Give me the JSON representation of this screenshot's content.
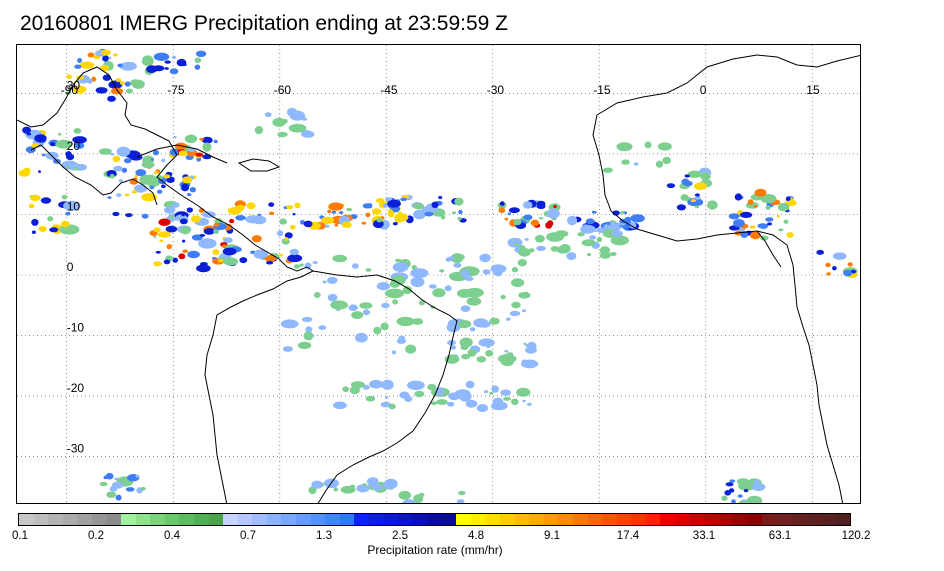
{
  "title": "20160801 IMERG Precipitation ending at 23:59:59 Z",
  "map": {
    "projection": "equirectangular",
    "lon_range": [
      -97,
      22
    ],
    "lat_range": [
      -38,
      38
    ],
    "lon_ticks": [
      "-90",
      "-75",
      "-60",
      "-45",
      "-30",
      "-15",
      "0",
      "15"
    ],
    "lat_ticks": [
      "30",
      "20",
      "10",
      "0",
      "-10",
      "-20",
      "-30"
    ],
    "gridlines": "dotted",
    "land_outline_color": "#000000"
  },
  "colorbar": {
    "title": "Precipitation rate (mm/hr)",
    "tick_labels": [
      "0.1",
      "0.2",
      "0.4",
      "0.7",
      "1.3",
      "2.5",
      "4.8",
      "9.1",
      "17.4",
      "33.1",
      "63.1",
      "120.2"
    ],
    "colors": [
      "#c8c8c8",
      "#bebebe",
      "#b4b4b4",
      "#aaaaaa",
      "#a0a0a0",
      "#969696",
      "#8c8c8c",
      "#9ff09f",
      "#8ce38c",
      "#7ad57a",
      "#69c869",
      "#5cbc5c",
      "#50b050",
      "#4aa34a",
      "#c8d2ff",
      "#b4c8ff",
      "#a0bdff",
      "#8cb3ff",
      "#78a8ff",
      "#649dff",
      "#5092ff",
      "#3c87ff",
      "#2a7aff",
      "#0a24f5",
      "#0a1ee6",
      "#0a19d7",
      "#0a14c8",
      "#0a0fb9",
      "#0a0aaa",
      "#0a0a9b",
      "#ffff00",
      "#ffee00",
      "#ffdd00",
      "#ffcc00",
      "#ffbb00",
      "#ffaa00",
      "#ff9900",
      "#ff8800",
      "#ff7700",
      "#ff6600",
      "#ff5500",
      "#ff4400",
      "#ff3300",
      "#ff2200",
      "#ee0000",
      "#dd0000",
      "#cc0000",
      "#bb0000",
      "#aa0000",
      "#990000",
      "#880000",
      "#7a1a1a",
      "#702020",
      "#682020",
      "#602020",
      "#582020",
      "#502020"
    ]
  },
  "precip_palette": [
    "#7ccf8e",
    "#8fb8ff",
    "#3f7df5",
    "#0a1fd6",
    "#ffd700",
    "#ff7a00",
    "#e00000"
  ]
}
